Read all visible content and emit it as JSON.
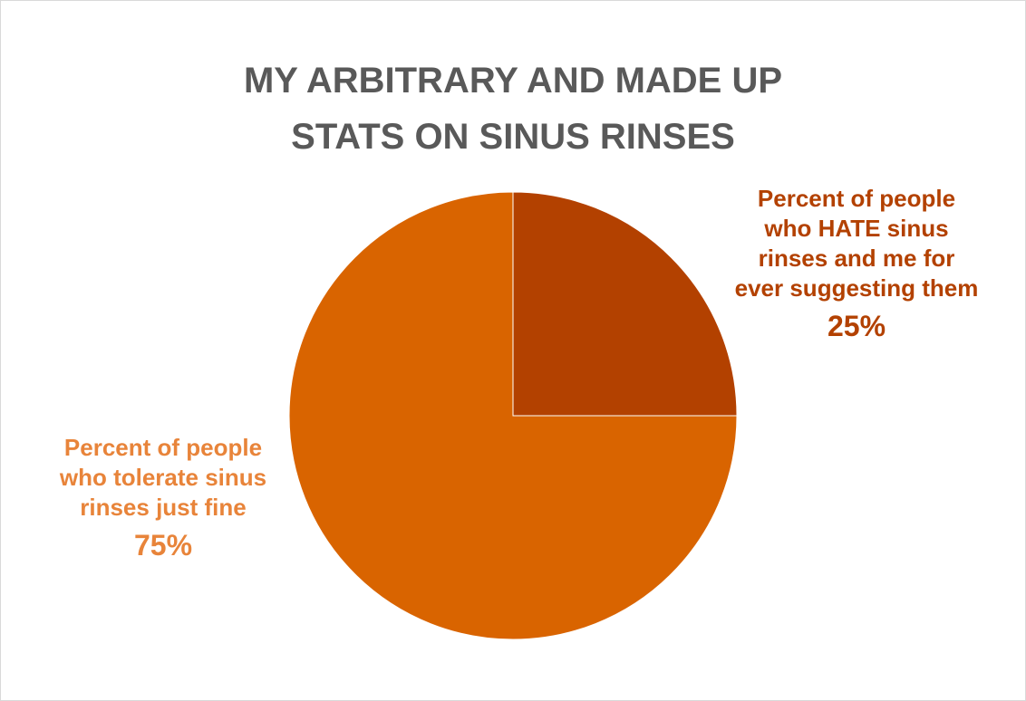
{
  "chart_data": {
    "type": "pie",
    "title_lines": [
      "MY ARBITRARY AND MADE UP",
      "STATS ON SINUS RINSES"
    ],
    "slices": [
      {
        "label_lines": [
          "Percent of people",
          "who HATE sinus",
          "rinses and me for",
          "ever suggesting them"
        ],
        "value": 25,
        "value_label": "25%",
        "color": "#b34100",
        "label_color": "#b34100"
      },
      {
        "label_lines": [
          "Percent of people",
          "who tolerate sinus",
          "rinses just fine"
        ],
        "value": 75,
        "value_label": "75%",
        "color": "#d96400",
        "label_color": "#e8843a"
      }
    ],
    "start_angle": "12 o'clock",
    "direction": "clockwise",
    "legend": "none",
    "data_labels": "outside"
  }
}
